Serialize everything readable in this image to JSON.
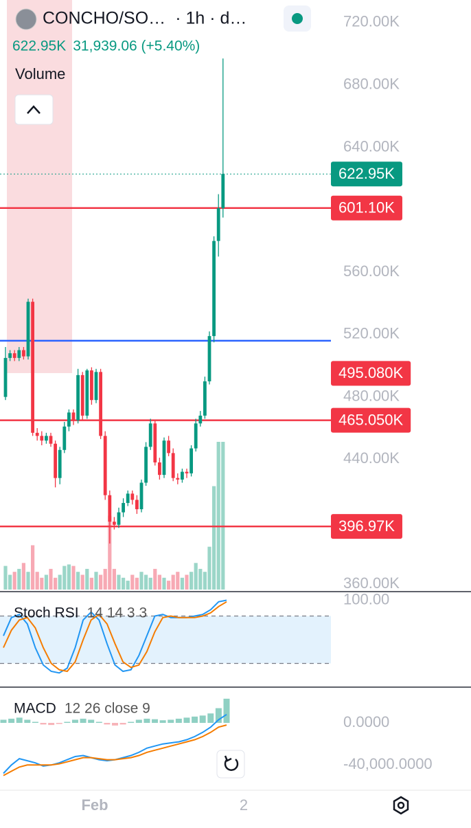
{
  "chart_data": {
    "type": "candlestick",
    "title": "CONCHO/SO…",
    "interval": "· 1h · d…",
    "last_price": {
      "value": 622950,
      "label": "622.95K",
      "color": "#089981"
    },
    "change": "31,939.06 (+5.40%)",
    "volume_label": "Volume",
    "up_color": "#089981",
    "down_color": "#f23645",
    "volume_up_color": "#9bd6c8",
    "volume_down_color": "#f7a9b4",
    "open": [
      480000,
      505000,
      508000,
      505000,
      510000,
      506000,
      541000,
      457000,
      455000,
      452000,
      455000,
      450000,
      428000,
      446000,
      461000,
      470000,
      465000,
      494000,
      468000,
      497000,
      478000,
      496000,
      455000,
      417000,
      400000,
      398000,
      406000,
      412000,
      418000,
      414000,
      408000,
      425000,
      448000,
      463000,
      438000,
      430000,
      452000,
      444000,
      428000,
      427000,
      432000,
      431000,
      447000,
      463000,
      468000,
      490000,
      519000,
      580000,
      601000
    ],
    "high": [
      512000,
      510000,
      510000,
      512000,
      512000,
      543000,
      543000,
      460000,
      458000,
      457000,
      457000,
      452000,
      448000,
      464000,
      472000,
      472000,
      498000,
      496000,
      498000,
      499000,
      498000,
      498000,
      458000,
      420000,
      403000,
      409000,
      415000,
      420000,
      420000,
      417000,
      427000,
      451000,
      466000,
      465000,
      441000,
      454000,
      455000,
      447000,
      431000,
      434000,
      434000,
      449000,
      466000,
      471000,
      493000,
      522000,
      583000,
      610000,
      697000
    ],
    "low": [
      478000,
      503000,
      503000,
      503000,
      504000,
      504000,
      455000,
      452000,
      449000,
      450000,
      448000,
      422000,
      424000,
      444000,
      458000,
      462000,
      463000,
      465000,
      466000,
      475000,
      476000,
      453000,
      414000,
      386000,
      395000,
      396000,
      403000,
      410000,
      411000,
      405000,
      406000,
      423000,
      446000,
      436000,
      427000,
      428000,
      442000,
      426000,
      424000,
      425000,
      428000,
      429000,
      445000,
      461000,
      466000,
      488000,
      515000,
      570000,
      595000
    ],
    "close": [
      505000,
      508000,
      505000,
      510000,
      506000,
      541000,
      457000,
      455000,
      452000,
      455000,
      450000,
      428000,
      446000,
      461000,
      470000,
      465000,
      494000,
      468000,
      497000,
      478000,
      496000,
      455000,
      417000,
      400000,
      398000,
      406000,
      412000,
      418000,
      414000,
      408000,
      425000,
      448000,
      463000,
      438000,
      430000,
      452000,
      444000,
      428000,
      427000,
      432000,
      431000,
      447000,
      463000,
      468000,
      490000,
      519000,
      580000,
      601000,
      622950
    ],
    "volume": [
      16,
      10,
      12,
      14,
      18,
      12,
      30,
      12,
      8,
      10,
      14,
      8,
      10,
      16,
      17,
      16,
      12,
      10,
      14,
      8,
      12,
      10,
      14,
      50,
      14,
      10,
      8,
      6,
      10,
      8,
      12,
      10,
      8,
      14,
      10,
      8,
      6,
      10,
      12,
      8,
      10,
      12,
      18,
      14,
      12,
      29,
      70,
      100,
      100
    ],
    "ylim": [
      355600,
      734500
    ],
    "yticks": [
      {
        "value": 720000,
        "label": "720.00K"
      },
      {
        "value": 680000,
        "label": "680.00K"
      },
      {
        "value": 640000,
        "label": "640.00K"
      },
      {
        "value": 560000,
        "label": "560.00K"
      },
      {
        "value": 520000,
        "label": "520.00K"
      },
      {
        "value": 480000,
        "label": "480.00K"
      },
      {
        "value": 440000,
        "label": "440.00K"
      },
      {
        "value": 360000,
        "label": "360.00K"
      }
    ],
    "levels": [
      {
        "value": 601100,
        "label": "601.10K",
        "color": "#f23645",
        "line": true
      },
      {
        "value": 495080,
        "label": "495.080K",
        "color": "#f23645",
        "line": false
      },
      {
        "value": 465050,
        "label": "465.050K",
        "color": "#f23645",
        "line": true
      },
      {
        "value": 396970,
        "label": "396.97K",
        "color": "#f23645",
        "line": true
      }
    ],
    "lines": [
      {
        "value": 516000,
        "color": "#2962ff"
      }
    ],
    "xlabels": [
      "Feb",
      "2"
    ],
    "indicators": [
      {
        "type": "line",
        "title": "Stoch RSI",
        "params": "14 14 3 3",
        "ylim": [
          -10,
          110
        ],
        "yticks": [
          {
            "value": 100,
            "label": "100.00"
          }
        ],
        "bands": [
          20,
          80
        ],
        "series": [
          {
            "color": "#2196f3",
            "values": [
              55,
              78,
              82,
              70,
              40,
              18,
              10,
              8,
              14,
              40,
              75,
              85,
              75,
              45,
              18,
              10,
              12,
              30,
              55,
              80,
              82,
              78,
              78,
              78,
              80,
              82,
              88,
              98,
              100
            ]
          },
          {
            "color": "#f57c00",
            "values": [
              40,
              62,
              75,
              78,
              65,
              40,
              20,
              12,
              10,
              22,
              50,
              75,
              82,
              70,
              45,
              22,
              15,
              18,
              35,
              60,
              78,
              80,
              78,
              78,
              78,
              80,
              84,
              92,
              98
            ]
          }
        ]
      },
      {
        "type": "macd",
        "title": "MACD",
        "params": "12 26 close 9",
        "ylim": [
          -64000,
          34000
        ],
        "yticks": [
          {
            "value": 0,
            "label": "0.0000"
          },
          {
            "value": -40000,
            "label": "-40,000.0000"
          }
        ],
        "histogram": [
          3000,
          4000,
          5000,
          3000,
          1000,
          -1500,
          -2000,
          -1000,
          1000,
          3000,
          4000,
          3000,
          1000,
          -1500,
          -2500,
          -1500,
          1000,
          3000,
          4000,
          3500,
          2500,
          3000,
          4000,
          5000,
          6000,
          7000,
          9000,
          14000,
          23000
        ],
        "histogram_up_color": "#8fd0c3",
        "histogram_down_color": "#f7b3b8",
        "series": [
          {
            "color": "#2196f3",
            "values": [
              -48000,
              -40000,
              -34000,
              -36000,
              -38000,
              -41000,
              -40000,
              -38000,
              -35000,
              -32000,
              -31000,
              -33000,
              -35000,
              -36000,
              -35000,
              -33000,
              -31000,
              -28000,
              -24000,
              -22000,
              -20000,
              -19000,
              -18000,
              -16000,
              -13000,
              -9000,
              -4000,
              3000,
              8000
            ]
          },
          {
            "color": "#f57c00",
            "values": [
              -50000,
              -46000,
              -42000,
              -40000,
              -40000,
              -40000,
              -40000,
              -39000,
              -37000,
              -35000,
              -33000,
              -33000,
              -34000,
              -35000,
              -35000,
              -34000,
              -33000,
              -31000,
              -28000,
              -26000,
              -24000,
              -22000,
              -20000,
              -18000,
              -16000,
              -13000,
              -9000,
              -4000,
              -2000
            ]
          }
        ]
      }
    ]
  }
}
